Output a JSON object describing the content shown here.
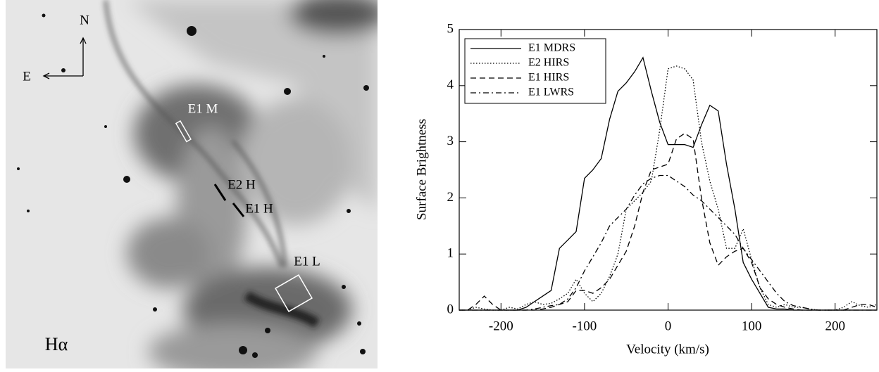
{
  "image": {
    "north": "N",
    "east": "E",
    "slits": [
      "E1 M",
      "E2 H",
      "E1 H",
      "E1 L"
    ],
    "filter": "Hα"
  },
  "chart_data": {
    "type": "line",
    "x": [
      -250,
      -240,
      -230,
      -220,
      -210,
      -200,
      -190,
      -180,
      -170,
      -160,
      -150,
      -140,
      -130,
      -120,
      -110,
      -100,
      -90,
      -80,
      -70,
      -60,
      -50,
      -40,
      -30,
      -20,
      -10,
      0,
      10,
      20,
      30,
      40,
      50,
      60,
      70,
      80,
      90,
      100,
      110,
      120,
      130,
      140,
      150,
      160,
      170,
      180,
      190,
      200,
      210,
      220,
      230,
      240,
      250
    ],
    "series": [
      {
        "name": "E1 MDRS",
        "color": "#000000",
        "dash": "solid",
        "values": [
          0,
          0,
          0,
          0,
          0,
          0,
          0,
          0,
          0.05,
          0.15,
          0.25,
          0.35,
          1.1,
          1.25,
          1.4,
          2.35,
          2.5,
          2.7,
          3.4,
          3.9,
          4.05,
          4.25,
          4.5,
          3.9,
          3.35,
          2.95,
          2.95,
          2.95,
          2.9,
          3.3,
          3.65,
          3.55,
          2.6,
          1.8,
          0.85,
          0.55,
          0.3,
          0.05,
          0.02,
          0.02,
          0,
          0,
          0,
          0,
          0,
          0,
          0,
          0,
          0,
          0,
          0
        ]
      },
      {
        "name": "E2 HIRS",
        "color": "#000000",
        "dash": "dotted",
        "values": [
          0,
          0,
          0.05,
          0.02,
          0,
          0,
          0.05,
          0.02,
          0.1,
          0.15,
          0.1,
          0.12,
          0.2,
          0.3,
          0.55,
          0.3,
          0.15,
          0.3,
          0.6,
          1.0,
          1.8,
          1.95,
          2.1,
          2.3,
          3.2,
          4.3,
          4.35,
          4.3,
          4.1,
          3.0,
          2.3,
          1.8,
          1.1,
          1.1,
          1.45,
          0.9,
          0.4,
          0.1,
          0.05,
          0.1,
          0.05,
          0.05,
          0.02,
          0,
          0,
          0,
          0.05,
          0.15,
          0.08,
          0.05,
          0.1
        ]
      },
      {
        "name": "E1 HIRS",
        "color": "#000000",
        "dash": "dashed",
        "values": [
          0,
          0,
          0.1,
          0.25,
          0.1,
          0,
          0,
          0,
          0,
          0,
          0.02,
          0.05,
          0.1,
          0.15,
          0.35,
          0.35,
          0.3,
          0.4,
          0.55,
          0.8,
          1.05,
          1.5,
          2.1,
          2.5,
          2.55,
          2.6,
          3.05,
          3.15,
          3.05,
          2.0,
          1.2,
          0.8,
          0.95,
          1.05,
          1.1,
          0.85,
          0.4,
          0.2,
          0.1,
          0.05,
          0.02,
          0,
          0,
          0,
          0,
          0,
          0,
          0.05,
          0.1,
          0.1,
          0.05
        ]
      },
      {
        "name": "E1 LWRS",
        "color": "#000000",
        "dash": "dashdot",
        "values": [
          0,
          0,
          0,
          0,
          0,
          0,
          0,
          0,
          0,
          0.02,
          0.05,
          0.08,
          0.1,
          0.2,
          0.4,
          0.7,
          0.95,
          1.2,
          1.5,
          1.65,
          1.8,
          2.05,
          2.25,
          2.35,
          2.4,
          2.4,
          2.3,
          2.2,
          2.05,
          1.95,
          1.8,
          1.65,
          1.5,
          1.35,
          1.1,
          0.9,
          0.7,
          0.5,
          0.3,
          0.15,
          0.08,
          0.05,
          0.02,
          0,
          0,
          0,
          0,
          0,
          0,
          0,
          0
        ]
      }
    ],
    "xlabel": "Velocity (km/s)",
    "ylabel": "Surface Brightness",
    "xlim": [
      -250,
      250
    ],
    "ylim": [
      0,
      5
    ],
    "xticks": [
      -200,
      -100,
      0,
      100,
      200
    ],
    "yticks": [
      0,
      1,
      2,
      3,
      4,
      5
    ],
    "legend": "upper-left"
  }
}
